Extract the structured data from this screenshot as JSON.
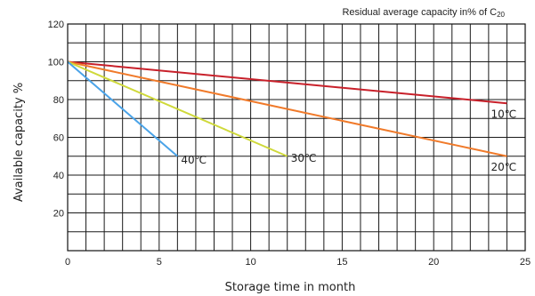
{
  "chart_data": {
    "type": "line",
    "title": "Residual average capacity in% of C",
    "title_subscript": "20",
    "xlabel": "Storage time in month",
    "ylabel": "Available capacity %",
    "xlim": [
      0,
      25
    ],
    "ylim": [
      0,
      120
    ],
    "x_ticks": [
      0,
      5,
      10,
      15,
      20,
      25
    ],
    "y_ticks": [
      20,
      40,
      60,
      80,
      100,
      120
    ],
    "x_minor_step": 1,
    "y_minor_step": 10,
    "grid": true,
    "legend": "inline labels at line ends",
    "series": [
      {
        "name": "10℃",
        "color": "#c8202a",
        "x": [
          0,
          24
        ],
        "y": [
          100,
          78
        ]
      },
      {
        "name": "20℃",
        "color": "#f07a2a",
        "x": [
          0,
          24
        ],
        "y": [
          100,
          50
        ]
      },
      {
        "name": "30℃",
        "color": "#cfd93a",
        "x": [
          0,
          12
        ],
        "y": [
          100,
          50
        ]
      },
      {
        "name": "40℃",
        "color": "#4aa3e8",
        "x": [
          0,
          6
        ],
        "y": [
          100,
          50
        ]
      }
    ]
  }
}
